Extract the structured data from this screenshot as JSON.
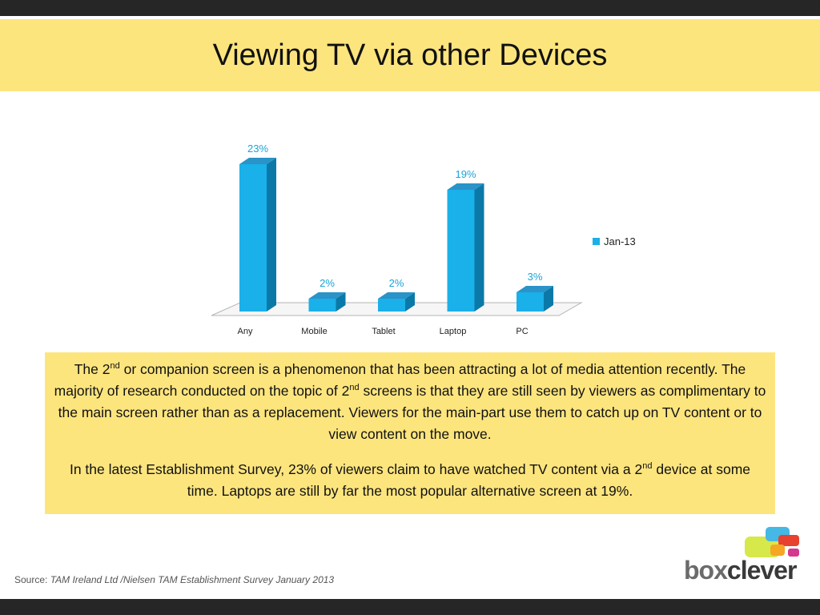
{
  "page": {
    "title": "Viewing TV via other Devices"
  },
  "chart_data": {
    "type": "bar",
    "categories": [
      "Any",
      "Mobile",
      "Tablet",
      "Laptop",
      "PC"
    ],
    "series": [
      {
        "name": "Jan-13",
        "values": [
          23,
          2,
          2,
          19,
          3
        ]
      }
    ],
    "data_labels": [
      "23%",
      "2%",
      "2%",
      "19%",
      "3%"
    ],
    "ylim": [
      0,
      23
    ],
    "grid": false,
    "legend": "right",
    "colors": {
      "bar_front": "#1ab0ea",
      "bar_side": "#0b79a8",
      "bar_top": "#2a93c7",
      "label": "#1aa3d9"
    }
  },
  "text_box": {
    "p1": {
      "t1": "The 2",
      "s1": "nd",
      "t2": " or companion screen is a phenomenon that has been attracting a lot of media attention recently. The majority of research conducted on the topic of 2",
      "s2": "nd",
      "t3": " screens is that they are still seen by viewers as complimentary to the main screen rather than as a replacement. Viewers for the main-part use them to catch up on TV content or to view content on the move."
    },
    "p2": {
      "t1": "In the latest Establishment Survey, 23% of viewers claim to have watched TV content via a 2",
      "s1": "nd",
      "t2": " device at some time.  Laptops are still by far the most popular alternative screen at 19%."
    }
  },
  "source": {
    "label": "Source: ",
    "reference": "TAM Ireland Ltd /Nielsen TAM Establishment Survey January 2013"
  },
  "logo": {
    "part1": "box",
    "part2": "clever"
  },
  "colors": {
    "band": "#fde57e",
    "bars": "#262626"
  }
}
